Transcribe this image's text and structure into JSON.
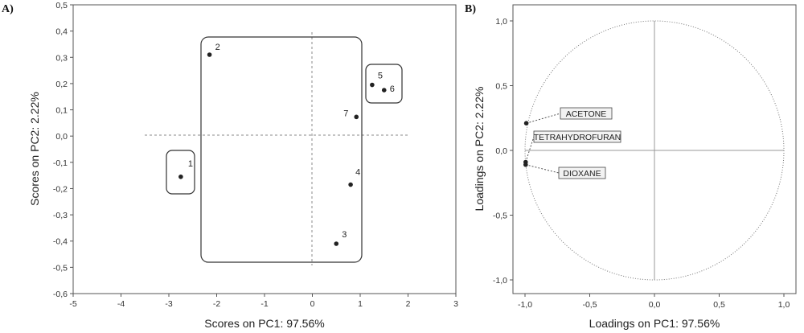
{
  "panels": {
    "a_label": "A)",
    "b_label": "B)"
  },
  "chart_data": [
    {
      "type": "scatter",
      "panel": "A)",
      "xlabel": "Scores on PC1: 97.56%",
      "ylabel": "Scores on PC2:  2.22%",
      "xlim": [
        -5,
        3
      ],
      "ylim": [
        -0.6,
        0.5
      ],
      "x_ticks": [
        "-5",
        "-4",
        "-3",
        "-2",
        "-1",
        "0",
        "1",
        "2",
        "3"
      ],
      "y_ticks": [
        "0,5",
        "0,4",
        "0,3",
        "0,2",
        "0,1",
        "0,0",
        "-0,1",
        "-0,2",
        "-0,3",
        "-0,4",
        "-0,5",
        "-0,6"
      ],
      "points": [
        {
          "label": "1",
          "x": -2.75,
          "y": -0.155
        },
        {
          "label": "2",
          "x": -2.15,
          "y": 0.31
        },
        {
          "label": "3",
          "x": 0.5,
          "y": -0.41
        },
        {
          "label": "4",
          "x": 0.8,
          "y": -0.185
        },
        {
          "label": "5",
          "x": 1.25,
          "y": 0.195
        },
        {
          "label": "6",
          "x": 1.5,
          "y": 0.175
        },
        {
          "label": "7",
          "x": 0.92,
          "y": 0.073
        }
      ],
      "grid": false
    },
    {
      "type": "scatter",
      "panel": "B)",
      "xlabel": "Loadings on PC1: 97.56%",
      "ylabel": "Loadings on PC2:  2.22%",
      "xlim": [
        -1.1,
        1.1
      ],
      "ylim": [
        -1.1,
        1.1
      ],
      "x_ticks": [
        "-1,0",
        "-0,5",
        "0,0",
        "0,5",
        "1,0"
      ],
      "y_ticks": [
        "1,0",
        "0,5",
        "0,0",
        "-0,5",
        "-1,0"
      ],
      "points": [
        {
          "label": "ACETONE",
          "x": -0.99,
          "y": 0.21
        },
        {
          "label": "TETRAHYDROFURAN",
          "x": -0.995,
          "y": -0.09
        },
        {
          "label": "DIOXANE",
          "x": -0.995,
          "y": -0.11
        }
      ],
      "unit_circle": true,
      "grid": false
    }
  ]
}
